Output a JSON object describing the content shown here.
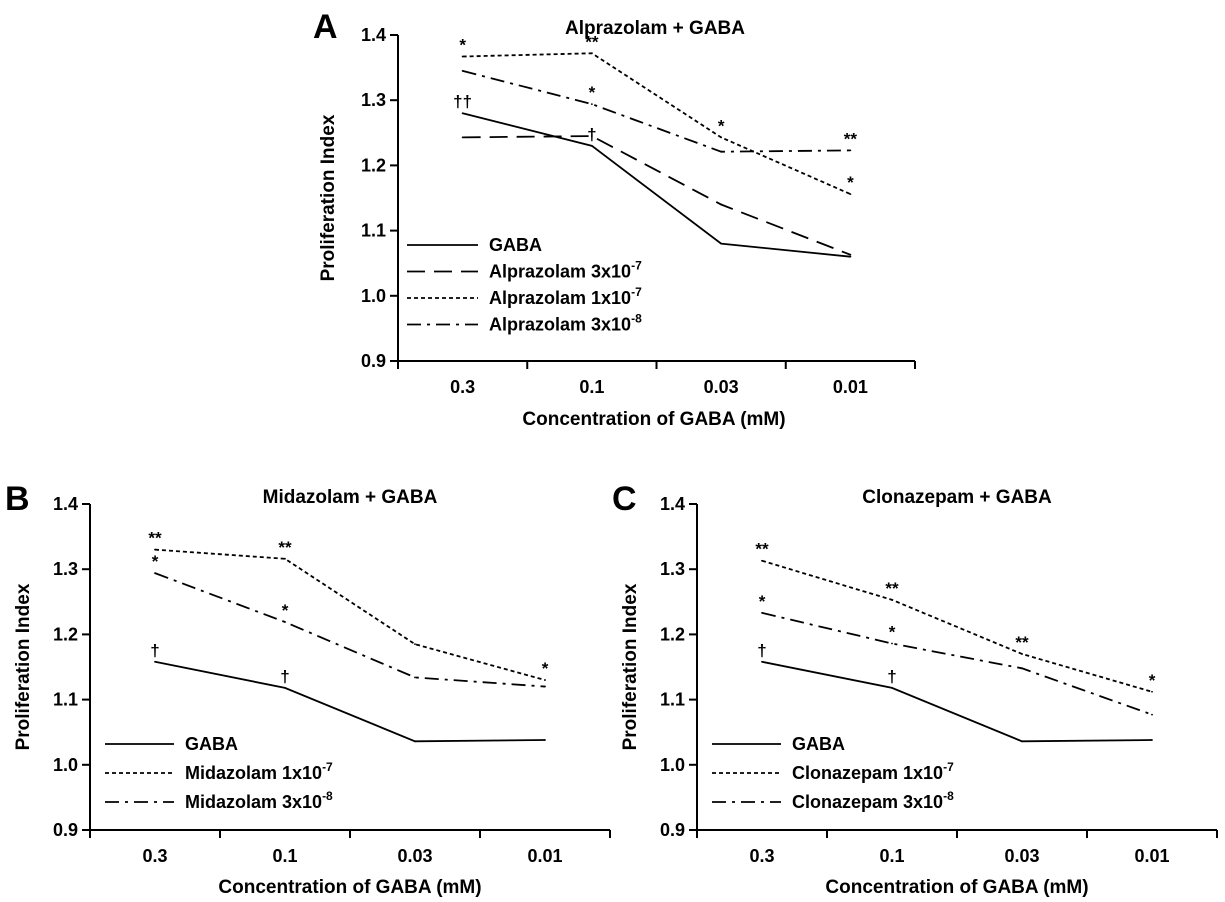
{
  "chart_data": [
    {
      "type": "line",
      "panel_label": "A",
      "title": "Alprazolam + GABA",
      "xlabel": "Concentration of GABA (mM)",
      "ylabel": "Proliferation Index",
      "categories": [
        "0.3",
        "0.1",
        "0.03",
        "0.01"
      ],
      "ylim": [
        0.9,
        1.4
      ],
      "yticks": [
        "0.9",
        "1.0",
        "1.1",
        "1.2",
        "1.3",
        "1.4"
      ],
      "legend_position": "bottom-left",
      "series": [
        {
          "name": "GABA",
          "dash": "solid",
          "values": [
            1.28,
            1.23,
            1.08,
            1.06
          ],
          "annotations": [
            "††",
            "†",
            "",
            ""
          ]
        },
        {
          "name": "Alprazolam 3x10",
          "sup": "-7",
          "dash": "long-dash",
          "values": [
            1.243,
            1.245,
            1.14,
            1.063
          ],
          "annotations": [
            "",
            "",
            "",
            ""
          ]
        },
        {
          "name": "Alprazolam 1x10",
          "sup": "-7",
          "dash": "dotted",
          "values": [
            1.367,
            1.372,
            1.243,
            1.156
          ],
          "annotations": [
            "*",
            "**",
            "*",
            "*"
          ]
        },
        {
          "name": "Alprazolam 3x10",
          "sup": "-8",
          "dash": "dash-dot",
          "values": [
            1.345,
            1.294,
            1.221,
            1.223
          ],
          "annotations": [
            "",
            "*",
            "",
            "**"
          ]
        }
      ]
    },
    {
      "type": "line",
      "panel_label": "B",
      "title": "Midazolam + GABA",
      "xlabel": "Concentration of GABA (mM)",
      "ylabel": "Proliferation Index",
      "categories": [
        "0.3",
        "0.1",
        "0.03",
        "0.01"
      ],
      "ylim": [
        0.9,
        1.4
      ],
      "yticks": [
        "0.9",
        "1.0",
        "1.1",
        "1.2",
        "1.3",
        "1.4"
      ],
      "legend_position": "bottom-left",
      "series": [
        {
          "name": "GABA",
          "dash": "solid",
          "values": [
            1.158,
            1.118,
            1.036,
            1.038
          ],
          "annotations": [
            "†",
            "†",
            "",
            ""
          ]
        },
        {
          "name": "Midazolam 1x10",
          "sup": "-7",
          "dash": "dotted",
          "values": [
            1.33,
            1.316,
            1.185,
            1.13
          ],
          "annotations": [
            "**",
            "**",
            "",
            "*"
          ]
        },
        {
          "name": "Midazolam 3x10",
          "sup": "-8",
          "dash": "dash-dot",
          "values": [
            1.294,
            1.219,
            1.134,
            1.12
          ],
          "annotations": [
            "*",
            "*",
            "",
            ""
          ]
        }
      ]
    },
    {
      "type": "line",
      "panel_label": "C",
      "title": "Clonazepam + GABA",
      "xlabel": "Concentration of GABA (mM)",
      "ylabel": "Proliferation Index",
      "categories": [
        "0.3",
        "0.1",
        "0.03",
        "0.01"
      ],
      "ylim": [
        0.9,
        1.4
      ],
      "yticks": [
        "0.9",
        "1.0",
        "1.1",
        "1.2",
        "1.3",
        "1.4"
      ],
      "legend_position": "bottom-left",
      "series": [
        {
          "name": "GABA",
          "dash": "solid",
          "values": [
            1.158,
            1.118,
            1.036,
            1.038
          ],
          "annotations": [
            "†",
            "†",
            "",
            ""
          ]
        },
        {
          "name": "Clonazepam 1x10",
          "sup": "-7",
          "dash": "dotted",
          "values": [
            1.313,
            1.253,
            1.17,
            1.112
          ],
          "annotations": [
            "**",
            "**",
            "**",
            "*"
          ]
        },
        {
          "name": "Clonazepam 3x10",
          "sup": "-8",
          "dash": "dash-dot",
          "values": [
            1.233,
            1.186,
            1.148,
            1.077
          ],
          "annotations": [
            "*",
            "*",
            "",
            ""
          ]
        }
      ]
    }
  ]
}
